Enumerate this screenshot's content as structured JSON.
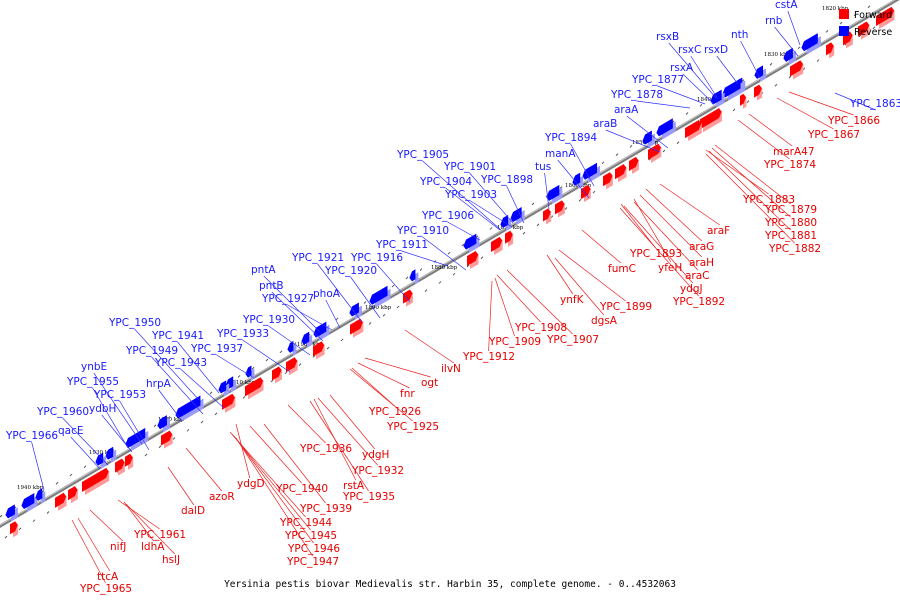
{
  "caption": "Yersinia pestis biovar Medievalis str. Harbin 35, complete genome. - 0..4532063",
  "legend": {
    "forward": "Forward",
    "reverse": "Reverse"
  },
  "colors": {
    "forward": "#ff0000",
    "reverse": "#0000ff",
    "axis": "#888888"
  },
  "ticks": [
    "1820 kbp",
    "1830 kbp",
    "1840 kbp",
    "1850 kbp",
    "1860 kbp",
    "1870 kbp",
    "1880 kbp",
    "1890 kbp",
    "1900 kbp",
    "1910 kbp",
    "1920 kbp",
    "1930 kbp",
    "1940 kbp"
  ],
  "reverse_genes": [
    "cstA",
    "rnb",
    "rsxB",
    "nth",
    "rsxC",
    "rsxD",
    "rsxA",
    "YPC_1877",
    "YPC_1878",
    "araA",
    "araB",
    "YPC_1894",
    "manA",
    "YPC_1905",
    "YPC_1901",
    "tus",
    "YPC_1904",
    "YPC_1898",
    "YPC_1903",
    "YPC_1906",
    "YPC_1910",
    "YPC_1911",
    "YPC_1916",
    "YPC_1921",
    "pntA",
    "YPC_1920",
    "pntB",
    "YPC_1927",
    "phoA",
    "YPC_1930",
    "YPC_1950",
    "YPC_1933",
    "YPC_1941",
    "YPC_1949",
    "YPC_1937",
    "YPC_1943",
    "ynbE",
    "YPC_1955",
    "hrpA",
    "YPC_1953",
    "ydbH",
    "YPC_1960",
    "qacE",
    "YPC_1966",
    "YPC_1863"
  ],
  "forward_genes": [
    "YPC_1866",
    "YPC_1867",
    "marA47",
    "YPC_1874",
    "YPC_1883",
    "YPC_1879",
    "YPC_1880",
    "YPC_1881",
    "YPC_1882",
    "araF",
    "araG",
    "YPC_1893",
    "araH",
    "yfeH",
    "araC",
    "fumC",
    "ydgJ",
    "YPC_1892",
    "YPC_1899",
    "ynfK",
    "dgsA",
    "YPC_1908",
    "YPC_1907",
    "YPC_1909",
    "YPC_1912",
    "ilvN",
    "ogt",
    "fnr",
    "YPC_1926",
    "YPC_1925",
    "ydgH",
    "YPC_1936",
    "YPC_1932",
    "rstA",
    "YPC_1935",
    "ydgD",
    "YPC_1940",
    "YPC_1939",
    "azoR",
    "YPC_1944",
    "YPC_1945",
    "YPC_1946",
    "YPC_1947",
    "dalD",
    "nifJ",
    "YPC_1961",
    "ldhA",
    "hslJ",
    "ttcA",
    "YPC_1965"
  ]
}
